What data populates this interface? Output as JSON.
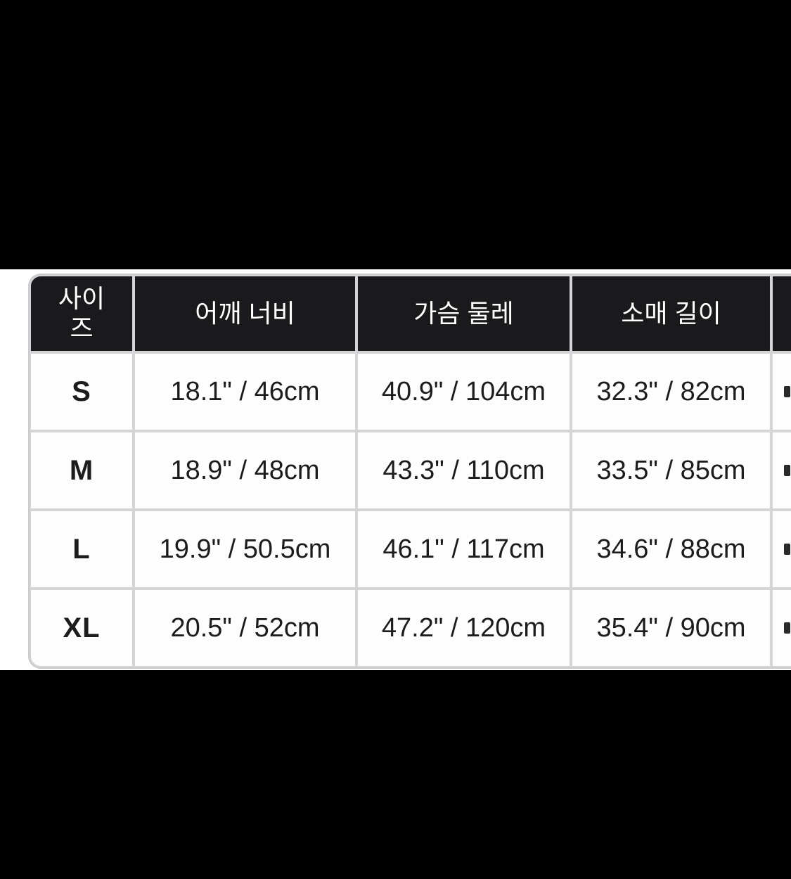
{
  "colors": {
    "page_background": "#000000",
    "section_background": "#ffffff",
    "header_cell_background": "#1a1a1c",
    "header_text": "#ffffff",
    "grid_line": "#d5d5d7",
    "cell_background": "#fdfdfe",
    "body_text": "#1c1c1c"
  },
  "size_chart": {
    "columns": [
      {
        "key": "size",
        "label": "사이즈"
      },
      {
        "key": "shoulder_width",
        "label": "어깨 너비"
      },
      {
        "key": "chest",
        "label": "가슴 둘레"
      },
      {
        "key": "sleeve_length",
        "label": "소매 길이"
      },
      {
        "key": "clipped",
        "label": ""
      }
    ],
    "rows": [
      {
        "size": "S",
        "shoulder_width": "18.1\" / 46cm",
        "chest": "40.9\" / 104cm",
        "sleeve_length": "32.3\" / 82cm",
        "clipped": ""
      },
      {
        "size": "M",
        "shoulder_width": "18.9\" / 48cm",
        "chest": "43.3\" / 110cm",
        "sleeve_length": "33.5\" / 85cm",
        "clipped": ""
      },
      {
        "size": "L",
        "shoulder_width": "19.9\" / 50.5cm",
        "chest": "46.1\" / 117cm",
        "sleeve_length": "34.6\" / 88cm",
        "clipped": ""
      },
      {
        "size": "XL",
        "shoulder_width": "20.5\" / 52cm",
        "chest": "47.2\" / 120cm",
        "sleeve_length": "35.4\" / 90cm",
        "clipped": ""
      }
    ]
  }
}
